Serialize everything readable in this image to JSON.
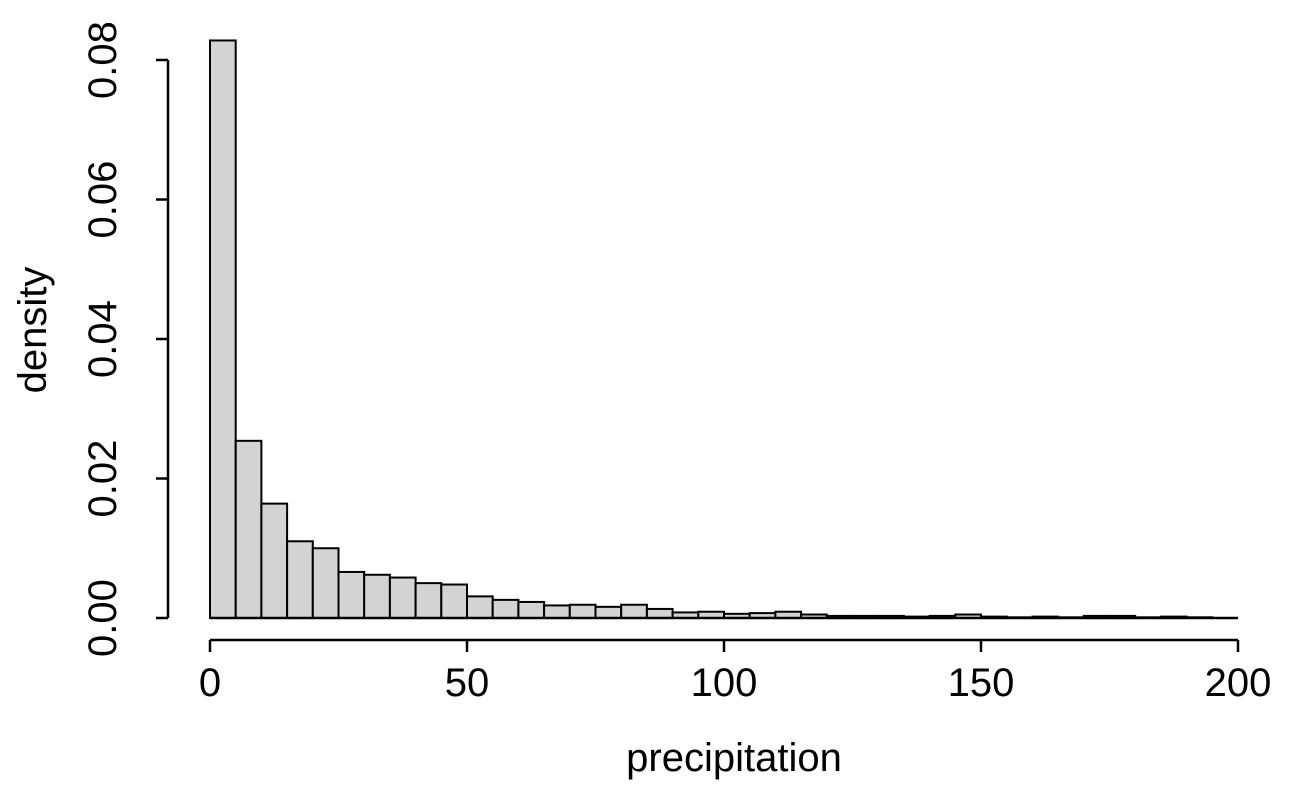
{
  "chart_data": {
    "type": "bar",
    "xlabel": "precipitation",
    "ylabel": "density",
    "bin_width": 5,
    "bin_start": 0,
    "values": [
      0.0828,
      0.0254,
      0.0164,
      0.011,
      0.01,
      0.0066,
      0.0062,
      0.0058,
      0.005,
      0.0048,
      0.0031,
      0.0026,
      0.0023,
      0.0018,
      0.0019,
      0.0016,
      0.0019,
      0.0013,
      0.0008,
      0.0009,
      0.0006,
      0.0007,
      0.0009,
      0.0005,
      0.0003,
      0.0003,
      0.0003,
      0.0002,
      0.0003,
      0.0005,
      0.0002,
      0.0001,
      0.0002,
      0.0001,
      0.0003,
      0.0003,
      0.0001,
      0.0002,
      0.0001,
      0.0
    ],
    "xlim": [
      0,
      200
    ],
    "ylim": [
      0,
      0.08
    ],
    "x_ticks": [
      {
        "value": 0,
        "label": "0"
      },
      {
        "value": 50,
        "label": "50"
      },
      {
        "value": 100,
        "label": "100"
      },
      {
        "value": 150,
        "label": "150"
      },
      {
        "value": 200,
        "label": "200"
      }
    ],
    "y_ticks": [
      {
        "value": 0,
        "label": "0.00"
      },
      {
        "value": 0.02,
        "label": "0.02"
      },
      {
        "value": 0.04,
        "label": "0.04"
      },
      {
        "value": 0.06,
        "label": "0.06"
      },
      {
        "value": 0.08,
        "label": "0.08"
      }
    ],
    "bar_fill": "#d3d3d3",
    "bar_stroke": "#000000",
    "grid": false,
    "legend": "none"
  }
}
